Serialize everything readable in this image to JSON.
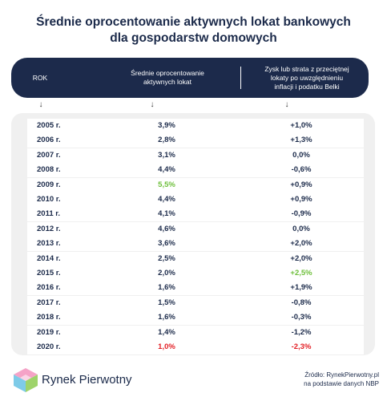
{
  "title": {
    "line1": "Średnie oprocentowanie aktywnych lokat bankowych",
    "line2": "dla gospodarstw domowych"
  },
  "header": {
    "col_year": "ROK",
    "col_avg_line1": "Średnie oprocentowanie",
    "col_avg_line2": "aktywnych lokat",
    "col_gain_line1": "Zysk lub strata z przeciętnej",
    "col_gain_line2": "lokaty po uwzględnieniu",
    "col_gain_line3": "inflacji i podatku Belki",
    "arrow": "↓"
  },
  "colors": {
    "navy": "#1c2a4b",
    "green": "#6dbf3a",
    "red": "#e31e24",
    "default": "#1b2a4a"
  },
  "rows": [
    {
      "year": "2005 r.",
      "avg": "3,9%",
      "gain": "+1,0%",
      "avg_color": "default",
      "gain_color": "default"
    },
    {
      "year": "2006 r.",
      "avg": "2,8%",
      "gain": "+1,3%",
      "avg_color": "default",
      "gain_color": "default"
    },
    {
      "year": "2007 r.",
      "avg": "3,1%",
      "gain": "0,0%",
      "avg_color": "default",
      "gain_color": "default"
    },
    {
      "year": "2008 r.",
      "avg": "4,4%",
      "gain": "-0,6%",
      "avg_color": "default",
      "gain_color": "default"
    },
    {
      "year": "2009 r.",
      "avg": "5,5%",
      "gain": "+0,9%",
      "avg_color": "green",
      "gain_color": "default"
    },
    {
      "year": "2010 r.",
      "avg": "4,4%",
      "gain": "+0,9%",
      "avg_color": "default",
      "gain_color": "default"
    },
    {
      "year": "2011 r.",
      "avg": "4,1%",
      "gain": "-0,9%",
      "avg_color": "default",
      "gain_color": "default"
    },
    {
      "year": "2012 r.",
      "avg": "4,6%",
      "gain": "0,0%",
      "avg_color": "default",
      "gain_color": "default"
    },
    {
      "year": "2013 r.",
      "avg": "3,6%",
      "gain": "+2,0%",
      "avg_color": "default",
      "gain_color": "default"
    },
    {
      "year": "2014 r.",
      "avg": "2,5%",
      "gain": "+2,0%",
      "avg_color": "default",
      "gain_color": "default"
    },
    {
      "year": "2015 r.",
      "avg": "2,0%",
      "gain": "+2,5%",
      "avg_color": "default",
      "gain_color": "green"
    },
    {
      "year": "2016 r.",
      "avg": "1,6%",
      "gain": "+1,9%",
      "avg_color": "default",
      "gain_color": "default"
    },
    {
      "year": "2017 r.",
      "avg": "1,5%",
      "gain": "-0,8%",
      "avg_color": "default",
      "gain_color": "default"
    },
    {
      "year": "2018 r.",
      "avg": "1,6%",
      "gain": "-0,3%",
      "avg_color": "default",
      "gain_color": "default"
    },
    {
      "year": "2019 r.",
      "avg": "1,4%",
      "gain": "-1,2%",
      "avg_color": "default",
      "gain_color": "default"
    },
    {
      "year": "2020 r.",
      "avg": "1,0%",
      "gain": "-2,3%",
      "avg_color": "red",
      "gain_color": "red"
    }
  ],
  "footer": {
    "logo_text": "Rynek Pierwotny",
    "source_line1": "Źródło: RynekPierwotny.pl",
    "source_line2": "na podstawie danych NBP"
  }
}
